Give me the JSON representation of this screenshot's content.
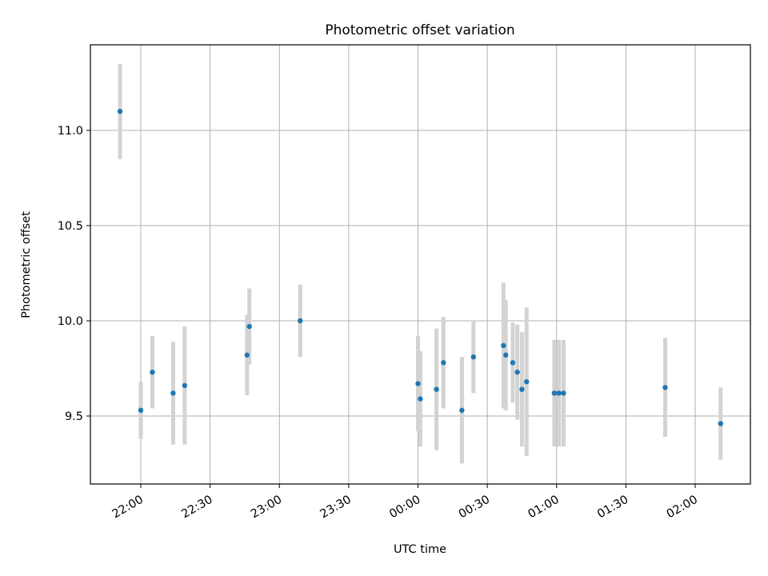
{
  "chart_data": {
    "type": "scatter",
    "title": "Photometric offset variation",
    "xlabel": "UTC time",
    "ylabel": "Photometric offset",
    "x_ticks": [
      "22:00",
      "22:30",
      "23:00",
      "23:30",
      "00:00",
      "00:30",
      "01:00",
      "01:30",
      "02:00"
    ],
    "y_ticks": [
      "9.5",
      "10.0",
      "10.5",
      "11.0"
    ],
    "grid": true,
    "colors": {
      "points": "#1f77b4",
      "errorbars": "#d3d3d3",
      "grid": "#b0b0b0"
    },
    "series": [
      {
        "points": [
          {
            "x": "21:51",
            "y": 11.1,
            "err": 0.25
          },
          {
            "x": "22:00",
            "y": 9.53,
            "err": 0.15
          },
          {
            "x": "22:05",
            "y": 9.73,
            "err": 0.19
          },
          {
            "x": "22:14",
            "y": 9.62,
            "err": 0.27
          },
          {
            "x": "22:19",
            "y": 9.66,
            "err": 0.31
          },
          {
            "x": "22:46",
            "y": 9.82,
            "err": 0.21
          },
          {
            "x": "22:47",
            "y": 9.97,
            "err": 0.2
          },
          {
            "x": "23:09",
            "y": 10.0,
            "err": 0.19
          },
          {
            "x": "00:00",
            "y": 9.67,
            "err": 0.25
          },
          {
            "x": "00:01",
            "y": 9.59,
            "err": 0.25
          },
          {
            "x": "00:08",
            "y": 9.64,
            "err": 0.32
          },
          {
            "x": "00:11",
            "y": 9.78,
            "err": 0.24
          },
          {
            "x": "00:19",
            "y": 9.53,
            "err": 0.28
          },
          {
            "x": "00:24",
            "y": 9.81,
            "err": 0.19
          },
          {
            "x": "00:37",
            "y": 9.87,
            "err": 0.33
          },
          {
            "x": "00:38",
            "y": 9.82,
            "err": 0.29
          },
          {
            "x": "00:41",
            "y": 9.78,
            "err": 0.21
          },
          {
            "x": "00:43",
            "y": 9.73,
            "err": 0.25
          },
          {
            "x": "00:45",
            "y": 9.64,
            "err": 0.3
          },
          {
            "x": "00:47",
            "y": 9.68,
            "err": 0.39
          },
          {
            "x": "00:59",
            "y": 9.62,
            "err": 0.28
          },
          {
            "x": "01:01",
            "y": 9.62,
            "err": 0.28
          },
          {
            "x": "01:03",
            "y": 9.62,
            "err": 0.28
          },
          {
            "x": "01:47",
            "y": 9.65,
            "err": 0.26
          },
          {
            "x": "02:11",
            "y": 9.46,
            "err": 0.19
          }
        ]
      }
    ]
  }
}
